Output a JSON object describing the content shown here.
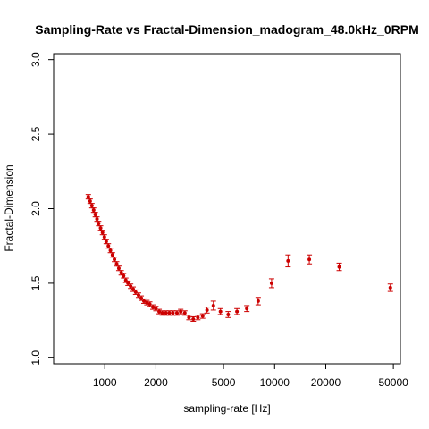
{
  "chart_data": {
    "type": "scatter",
    "title": "Sampling-Rate vs Fractal-Dimension_madogram_48.0kHz_0RPM",
    "xlabel": "sampling-rate [Hz]",
    "ylabel": "Fractal-Dimension",
    "x_scale": "log",
    "xlim": [
      500,
      55000
    ],
    "ylim": [
      0.96,
      3.04
    ],
    "x_ticks": [
      1000,
      2000,
      5000,
      10000,
      20000,
      50000
    ],
    "x_tick_labels": [
      "1000",
      "2000",
      "5000",
      "10000",
      "20000",
      "50000"
    ],
    "y_ticks": [
      1.0,
      1.5,
      2.0,
      2.5,
      3.0
    ],
    "y_tick_labels": [
      "1.0",
      "1.5",
      "2.0",
      "2.5",
      "3.0"
    ],
    "color": "#cc0000",
    "series": [
      {
        "x": [
          800,
          820,
          840,
          860,
          880,
          900,
          920,
          945,
          970,
          995,
          1020,
          1050,
          1080,
          1110,
          1140,
          1175,
          1210,
          1250,
          1290,
          1330,
          1370,
          1420,
          1470,
          1520,
          1580,
          1640,
          1700,
          1770,
          1840,
          1920,
          2000,
          2090,
          2180,
          2290,
          2400,
          2520,
          2660,
          2800,
          2960,
          3130,
          3320,
          3530,
          3770,
          4000,
          4360,
          4800,
          5330,
          6000,
          6860,
          8000,
          9600,
          12000,
          16000,
          24000,
          48000
        ],
        "y": [
          2.08,
          2.05,
          2.02,
          1.99,
          1.96,
          1.93,
          1.9,
          1.87,
          1.84,
          1.81,
          1.78,
          1.75,
          1.72,
          1.69,
          1.66,
          1.63,
          1.6,
          1.57,
          1.55,
          1.52,
          1.5,
          1.48,
          1.46,
          1.44,
          1.42,
          1.4,
          1.38,
          1.37,
          1.36,
          1.34,
          1.33,
          1.31,
          1.3,
          1.3,
          1.3,
          1.3,
          1.3,
          1.31,
          1.3,
          1.27,
          1.26,
          1.27,
          1.28,
          1.32,
          1.35,
          1.31,
          1.29,
          1.31,
          1.33,
          1.38,
          1.5,
          1.65,
          1.66,
          1.61,
          1.47
        ],
        "err": [
          0.015,
          0.015,
          0.015,
          0.015,
          0.015,
          0.015,
          0.015,
          0.015,
          0.015,
          0.015,
          0.015,
          0.015,
          0.015,
          0.015,
          0.015,
          0.015,
          0.015,
          0.015,
          0.015,
          0.015,
          0.015,
          0.015,
          0.015,
          0.015,
          0.015,
          0.015,
          0.015,
          0.015,
          0.015,
          0.015,
          0.015,
          0.015,
          0.015,
          0.015,
          0.015,
          0.015,
          0.015,
          0.015,
          0.015,
          0.015,
          0.015,
          0.015,
          0.015,
          0.02,
          0.03,
          0.02,
          0.02,
          0.02,
          0.02,
          0.025,
          0.03,
          0.04,
          0.03,
          0.025,
          0.025
        ]
      }
    ]
  }
}
